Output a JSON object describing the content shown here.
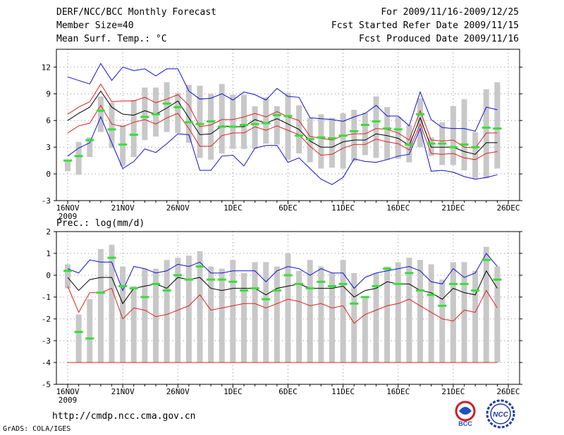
{
  "header": {
    "left": [
      "DERF/NCC/BCC Monthly Forecast",
      "Member Size=40",
      "Mean Surf. Temp.: °C"
    ],
    "right": [
      "For 2009/11/16-2009/12/25",
      "Fcst Started Refer Date 2009/11/15",
      "Fcst Produced Date 2009/11/16"
    ]
  },
  "footer": {
    "url": "http://cmdp.ncc.cma.gov.cn",
    "credit": "GrADS: COLA/IGES"
  },
  "logos": {
    "bcc": "BCC",
    "ncc": "NCC"
  },
  "colors": {
    "box": "#c8c8c8",
    "median": "#33e033",
    "mean": "#000000",
    "spread": "#e02020",
    "envelope": "#1010d0"
  },
  "chart_data": [
    {
      "type": "box-envelope",
      "title": "Mean Surf. Temp.: °C",
      "ylim": [
        -3,
        14
      ],
      "yticks": [
        -3,
        0,
        3,
        6,
        9,
        12
      ],
      "xticks": [
        {
          "day": 0,
          "label": "16NOV",
          "sub": "2009"
        },
        {
          "day": 5,
          "label": "21NOV"
        },
        {
          "day": 10,
          "label": "26NOV"
        },
        {
          "day": 15,
          "label": "1DEC"
        },
        {
          "day": 20,
          "label": "6DEC"
        },
        {
          "day": 25,
          "label": "11DEC"
        },
        {
          "day": 30,
          "label": "16DEC"
        },
        {
          "day": 35,
          "label": "21DEC"
        },
        {
          "day": 40,
          "label": "26DEC"
        }
      ],
      "box_low": [
        0.3,
        -0.1,
        1.9,
        4.7,
        2.9,
        0.9,
        1.9,
        3.8,
        4.2,
        4.7,
        4.6,
        3.5,
        1.8,
        1.6,
        2.3,
        2.8,
        2.8,
        2.8,
        3.4,
        3.3,
        1.6,
        2.3,
        1.3,
        0.6,
        0.7,
        0.6,
        1.4,
        2.1,
        1.8,
        1.6,
        1.7,
        1.3,
        3.0,
        2.0,
        1.0,
        1.0,
        0.4,
        -0.5,
        -0.5,
        0.6
      ],
      "box_high": [
        1.5,
        3.6,
        4.1,
        8.7,
        8.0,
        5.5,
        8.3,
        9.7,
        9.7,
        10.3,
        9.1,
        10.0,
        9.9,
        9.0,
        10.1,
        8.9,
        8.9,
        7.6,
        8.6,
        7.6,
        9.1,
        7.7,
        6.3,
        6.7,
        6.3,
        6.8,
        7.2,
        6.9,
        8.7,
        7.5,
        6.4,
        5.5,
        8.5,
        4.1,
        5.8,
        7.6,
        8.4,
        4.7,
        9.5,
        10.3
      ],
      "median": [
        1.5,
        2.0,
        3.8,
        7.1,
        5.0,
        3.3,
        4.4,
        6.4,
        6.7,
        7.9,
        7.5,
        5.8,
        5.6,
        5.9,
        5.3,
        5.3,
        5.5,
        5.6,
        5.7,
        6.6,
        6.5,
        4.3,
        3.9,
        4.1,
        4.0,
        4.3,
        4.8,
        5.5,
        5.9,
        5.1,
        5.0,
        3.3,
        6.7,
        3.4,
        3.4,
        3.0,
        3.3,
        3.0,
        5.2,
        5.1
      ],
      "mean": [
        6.0,
        6.8,
        7.5,
        9.3,
        7.5,
        6.7,
        6.6,
        7.1,
        6.7,
        7.4,
        8.2,
        6.3,
        4.4,
        4.5,
        5.4,
        5.3,
        5.3,
        6.1,
        5.7,
        6.2,
        5.6,
        5.0,
        3.7,
        3.0,
        3.0,
        3.6,
        3.8,
        3.8,
        4.5,
        4.3,
        4.0,
        3.2,
        6.3,
        3.0,
        3.0,
        3.0,
        2.5,
        2.2,
        3.5,
        3.5
      ],
      "red_upper": [
        6.7,
        7.5,
        8.1,
        10.1,
        8.1,
        8.2,
        8.2,
        8.6,
        8.0,
        8.4,
        8.9,
        7.7,
        5.3,
        5.5,
        6.1,
        6.1,
        6.4,
        6.8,
        6.4,
        7.0,
        6.4,
        6.0,
        4.2,
        4.0,
        3.8,
        4.3,
        4.5,
        4.5,
        5.1,
        5.0,
        4.6,
        3.8,
        7.1,
        3.8,
        3.7,
        3.8,
        3.0,
        2.9,
        4.6,
        4.6
      ],
      "red_lower": [
        4.6,
        5.4,
        5.7,
        7.7,
        5.6,
        5.3,
        5.8,
        6.1,
        5.6,
        6.3,
        6.8,
        5.1,
        3.1,
        3.1,
        4.3,
        4.6,
        4.6,
        5.3,
        4.9,
        5.4,
        4.9,
        4.4,
        3.1,
        2.1,
        2.2,
        2.9,
        3.3,
        3.3,
        3.9,
        3.6,
        3.4,
        2.7,
        5.6,
        2.3,
        2.2,
        2.3,
        1.8,
        1.6,
        2.3,
        2.5
      ],
      "blue_upper": [
        10.9,
        10.5,
        10.1,
        12.4,
        10.5,
        12.0,
        11.6,
        11.8,
        11.0,
        11.8,
        11.8,
        9.3,
        8.4,
        8.5,
        9.0,
        8.3,
        9.2,
        8.9,
        8.3,
        9.6,
        8.7,
        8.6,
        6.3,
        6.2,
        6.1,
        5.9,
        6.4,
        6.8,
        7.7,
        6.5,
        6.5,
        5.4,
        9.2,
        6.1,
        5.2,
        5.1,
        5.1,
        4.8,
        7.5,
        7.2
      ],
      "blue_lower": [
        2.0,
        2.9,
        3.5,
        6.4,
        3.5,
        0.6,
        1.4,
        2.8,
        2.4,
        3.4,
        4.5,
        4.4,
        0.4,
        0.4,
        2.0,
        2.1,
        0.9,
        2.9,
        3.2,
        3.2,
        1.3,
        1.8,
        0.6,
        -0.6,
        -1.2,
        -0.4,
        1.7,
        1.4,
        1.3,
        1.6,
        2.0,
        2.2,
        5.1,
        0.3,
        0.4,
        0.2,
        -0.3,
        -0.6,
        -0.4,
        -0.1
      ]
    },
    {
      "type": "box-envelope",
      "title": "Prec.: log(mm/d)",
      "ylim": [
        -5,
        2
      ],
      "yticks": [
        -5,
        -4,
        -3,
        -2,
        -1,
        0,
        1,
        2
      ],
      "xticks": [
        {
          "day": 0,
          "label": "16NOV",
          "sub": "2009"
        },
        {
          "day": 5,
          "label": "21NOV"
        },
        {
          "day": 10,
          "label": "26NOV"
        },
        {
          "day": 15,
          "label": "1DEC"
        },
        {
          "day": 20,
          "label": "6DEC"
        },
        {
          "day": 25,
          "label": "11DEC"
        },
        {
          "day": 30,
          "label": "16DEC"
        },
        {
          "day": 35,
          "label": "21DEC"
        },
        {
          "day": 40,
          "label": "26DEC"
        }
      ],
      "box_low": [
        -0.6,
        -4.0,
        -4.0,
        -4.0,
        -4.0,
        -4.0,
        -4.0,
        -4.0,
        -4.0,
        -4.0,
        -4.0,
        -4.0,
        -4.0,
        -4.0,
        -4.0,
        -4.0,
        -4.0,
        -4.0,
        -4.0,
        -4.0,
        -4.0,
        -4.0,
        -4.0,
        -4.0,
        -4.0,
        -4.0,
        -4.0,
        -4.0,
        -4.0,
        -4.0,
        -4.0,
        -4.0,
        -4.0,
        -4.0,
        -4.0,
        -4.0,
        -4.0,
        -4.0,
        -4.0,
        -4.0
      ],
      "box_high": [
        0.5,
        -1.8,
        -1.1,
        1.2,
        1.4,
        0.4,
        -0.5,
        0.3,
        0.3,
        0.7,
        0.8,
        0.9,
        1.1,
        0.4,
        0.3,
        0.7,
        0.1,
        0.6,
        0.6,
        0.4,
        1.0,
        0.2,
        0.7,
        0.4,
        0.1,
        0.7,
        0.1,
        -1.0,
        0.1,
        0.4,
        0.6,
        0.8,
        0.7,
        0.5,
        -0.2,
        0.6,
        0.6,
        0.2,
        1.3,
        0.4
      ],
      "median": [
        0.2,
        -2.6,
        -2.9,
        -0.8,
        0.8,
        -0.5,
        -0.6,
        -1.0,
        -0.4,
        -0.7,
        0.0,
        -0.2,
        0.4,
        -0.2,
        -0.2,
        -0.3,
        -0.7,
        -0.6,
        -1.1,
        -0.7,
        0.0,
        -0.4,
        -0.6,
        -0.3,
        -0.5,
        -0.4,
        -1.3,
        -1.0,
        -0.5,
        0.3,
        -0.4,
        0.1,
        -0.7,
        -0.9,
        -1.4,
        -0.4,
        -0.4,
        -0.7,
        0.7,
        -0.2
      ],
      "mean": [
        -0.1,
        -0.7,
        -0.2,
        -0.1,
        -0.1,
        -1.3,
        -0.6,
        -0.5,
        -0.4,
        -0.6,
        -0.1,
        -0.2,
        -0.1,
        -0.6,
        -0.7,
        -0.6,
        -0.6,
        -0.6,
        -0.9,
        -0.6,
        -0.5,
        -0.4,
        -0.6,
        -0.6,
        -0.6,
        -0.5,
        -1.0,
        -0.7,
        -0.6,
        -0.3,
        -0.4,
        -0.4,
        -0.7,
        -0.8,
        -1.1,
        -0.6,
        -0.8,
        -0.9,
        0.2,
        -0.6
      ],
      "red_upper": [
        -0.5,
        -1.7,
        -0.8,
        -0.8,
        -0.6,
        -2.0,
        -1.5,
        -1.6,
        -1.9,
        -1.8,
        -1.6,
        -1.4,
        -0.9,
        -1.6,
        -1.5,
        -1.4,
        -1.3,
        -1.3,
        -1.5,
        -1.3,
        -1.1,
        -1.2,
        -1.4,
        -1.3,
        -1.5,
        -1.4,
        -2.2,
        -1.8,
        -1.6,
        -1.4,
        -1.3,
        -1.1,
        -1.4,
        -1.7,
        -2.0,
        -2.1,
        -1.6,
        -1.7,
        -0.7,
        -1.5
      ],
      "red_lower": [
        -4.0,
        -4.0,
        -4.0,
        -4.0,
        -4.0,
        -4.0,
        -4.0,
        -4.0,
        -4.0,
        -4.0,
        -4.0,
        -4.0,
        -4.0,
        -4.0,
        -4.0,
        -4.0,
        -4.0,
        -4.0,
        -4.0,
        -4.0,
        -4.0,
        -4.0,
        -4.0,
        -4.0,
        -4.0,
        -4.0,
        -4.0,
        -4.0,
        -4.0,
        -4.0,
        -4.0,
        -4.0,
        -4.0,
        -4.0,
        -4.0,
        -4.0,
        -4.0,
        -4.0,
        -4.0,
        -4.0
      ],
      "blue_upper": [
        0.3,
        0.1,
        0.7,
        0.6,
        0.6,
        -0.7,
        0.4,
        0.3,
        0.1,
        0.2,
        0.5,
        0.4,
        0.6,
        0.1,
        0.1,
        0.2,
        0.2,
        0.2,
        -0.3,
        0.2,
        0.4,
        0.3,
        0.0,
        0.3,
        0.1,
        0.1,
        -0.6,
        -0.1,
        0.1,
        0.2,
        0.3,
        0.4,
        0.2,
        -0.3,
        -0.4,
        0.3,
        -0.1,
        0.1,
        1.0,
        0.4
      ],
      "blue_lower": [
        -4.0,
        -4.0,
        -4.0,
        -4.0,
        -4.0,
        -4.0,
        -4.0,
        -4.0,
        -4.0,
        -4.0,
        -4.0,
        -4.0,
        -4.0,
        -4.0,
        -4.0,
        -4.0,
        -4.0,
        -4.0,
        -4.0,
        -4.0,
        -4.0,
        -4.0,
        -4.0,
        -4.0,
        -4.0,
        -4.0,
        -4.0,
        -4.0,
        -4.0,
        -4.0,
        -4.0,
        -4.0,
        -4.0,
        -4.0,
        -4.0,
        -4.0,
        -4.0,
        -4.0,
        -4.0,
        -4.0
      ]
    }
  ]
}
